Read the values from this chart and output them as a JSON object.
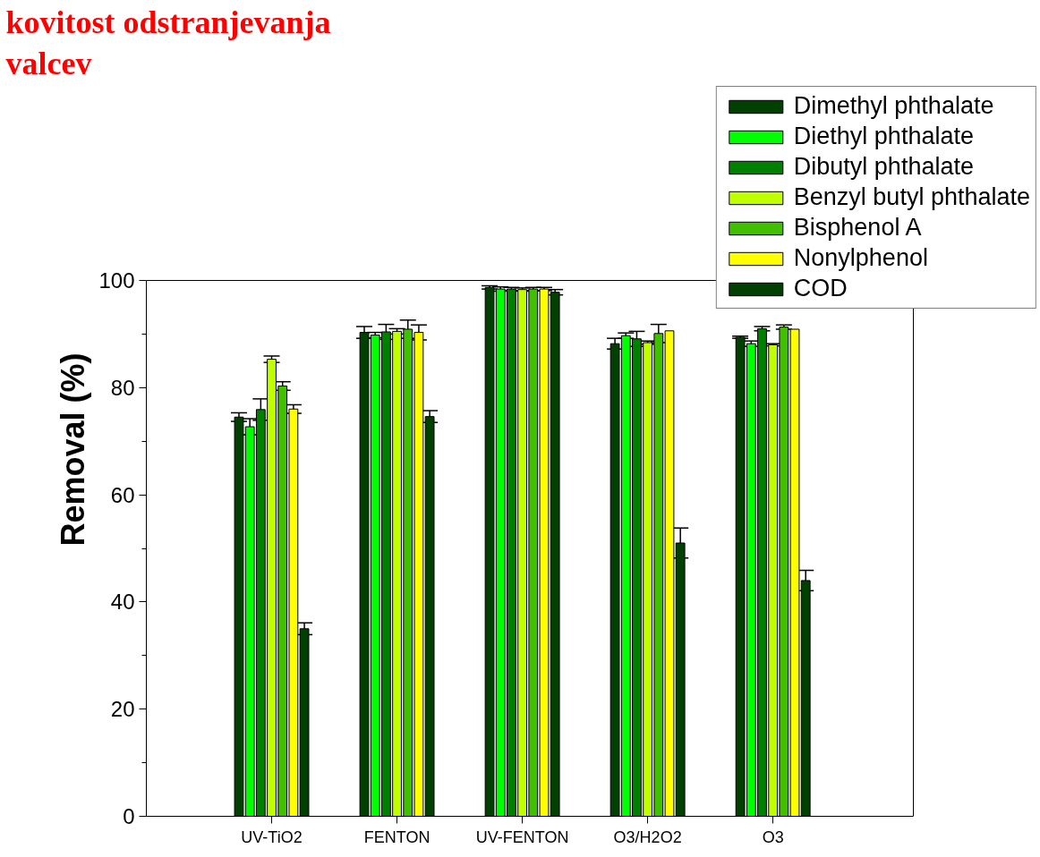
{
  "chart_data": {
    "type": "bar",
    "title": "kovitost odstranjevanja\nvalcev",
    "ylabel": "Removal (%)",
    "categories": [
      "UV-TiO2",
      "FENTON",
      "UV-FENTON",
      "O3/H2O2",
      "O3"
    ],
    "series": [
      {
        "name": "Dimethyl phthalate",
        "color": "#004000",
        "values": [
          74.5,
          90.3,
          98.7,
          88.2,
          89.4
        ],
        "errors": [
          0.8,
          1.1,
          0.3,
          1.0,
          0.2
        ]
      },
      {
        "name": "Diethyl phthalate",
        "color": "#00ff00",
        "values": [
          72.7,
          89.8,
          98.4,
          89.7,
          88.2
        ],
        "errors": [
          1.5,
          0.5,
          0.4,
          0.5,
          0.5
        ]
      },
      {
        "name": "Dibutyl phthalate",
        "color": "#008000",
        "values": [
          75.9,
          90.4,
          98.4,
          89.1,
          91.0
        ],
        "errors": [
          2.0,
          1.4,
          0.3,
          1.4,
          0.4
        ]
      },
      {
        "name": "Benzyl butyl phthalate",
        "color": "#c0ff00",
        "values": [
          85.3,
          90.5,
          98.3,
          88.4,
          88.0
        ],
        "errors": [
          0.6,
          0.5,
          0.3,
          0.3,
          0.2
        ]
      },
      {
        "name": "Bisphenol A",
        "color": "#40c000",
        "values": [
          80.3,
          90.9,
          98.4,
          90.1,
          91.3
        ],
        "errors": [
          0.8,
          1.7,
          0.3,
          1.7,
          0.4
        ]
      },
      {
        "name": "Nonylphenol",
        "color": "#ffff00",
        "values": [
          76.0,
          90.3,
          98.4,
          90.6,
          90.9
        ],
        "errors": [
          0.8,
          1.4,
          0.3,
          null,
          null
        ]
      },
      {
        "name": "COD",
        "color": "#004000",
        "values": [
          35.0,
          74.6,
          97.8,
          51.0,
          44.0
        ],
        "errors": [
          1.1,
          1.1,
          0.5,
          2.8,
          1.9
        ]
      }
    ],
    "ylim": [
      0,
      100
    ],
    "yticks": [
      0,
      {
        "value": 10,
        "label": null
      },
      20,
      {
        "value": 30,
        "label": null
      },
      40,
      {
        "value": 50,
        "label": null
      },
      60,
      {
        "value": 70,
        "label": null
      },
      80,
      {
        "value": 90,
        "label": null
      },
      100
    ],
    "grid": false,
    "legend": "top right"
  }
}
